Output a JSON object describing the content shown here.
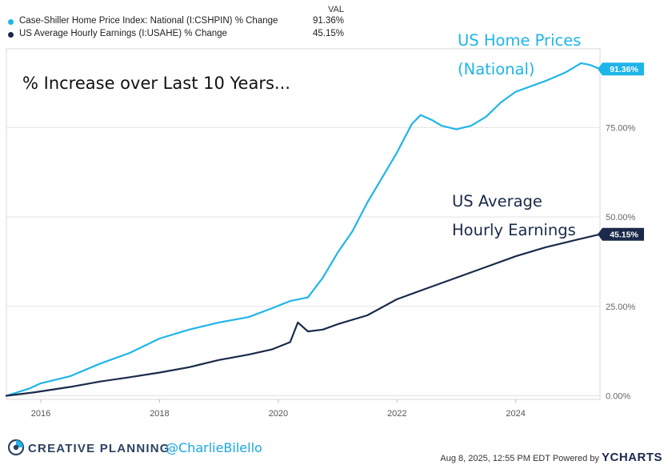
{
  "legend": {
    "header": "VAL",
    "items": [
      {
        "name": "Case-Shiller Home Price Index: National (I:CSHPIN) % Change",
        "value": "91.36%",
        "color": "#1fb5e8"
      },
      {
        "name": "US Average Hourly Earnings (I:USAHE) % Change",
        "value": "45.15%",
        "color": "#1b2a4a"
      }
    ]
  },
  "annotations": {
    "main": "% Increase over Last 10 Years...",
    "home_line1": "US Home Prices",
    "home_line2": "(National)",
    "earn_line1": "US Average",
    "earn_line2": "Hourly Earnings"
  },
  "chart_data": {
    "type": "line",
    "x_ticks": [
      "2016",
      "2018",
      "2020",
      "2022",
      "2024"
    ],
    "y_ticks": [
      "0.00%",
      "25.00%",
      "50.00%",
      "75.00%"
    ],
    "xlim": [
      2015.42,
      2025.42
    ],
    "ylim": [
      -1,
      97
    ],
    "grid": true,
    "series": [
      {
        "name": "Case-Shiller Home Price Index: National (I:CSHPIN) % Change",
        "color": "#1fb5e8",
        "end_label": "91.36%",
        "points": [
          [
            2015.42,
            0
          ],
          [
            2015.8,
            2
          ],
          [
            2016.0,
            3.5
          ],
          [
            2016.5,
            5.5
          ],
          [
            2017.0,
            9
          ],
          [
            2017.5,
            12
          ],
          [
            2018.0,
            16
          ],
          [
            2018.5,
            18.5
          ],
          [
            2019.0,
            20.5
          ],
          [
            2019.5,
            22
          ],
          [
            2019.9,
            24.5
          ],
          [
            2020.2,
            26.5
          ],
          [
            2020.5,
            27.5
          ],
          [
            2020.75,
            33
          ],
          [
            2021.0,
            40
          ],
          [
            2021.25,
            46
          ],
          [
            2021.5,
            54
          ],
          [
            2021.75,
            61
          ],
          [
            2022.0,
            68
          ],
          [
            2022.25,
            76
          ],
          [
            2022.4,
            78.5
          ],
          [
            2022.6,
            77
          ],
          [
            2022.75,
            75.5
          ],
          [
            2023.0,
            74.5
          ],
          [
            2023.25,
            75.5
          ],
          [
            2023.5,
            78
          ],
          [
            2023.75,
            82
          ],
          [
            2024.0,
            85
          ],
          [
            2024.5,
            88
          ],
          [
            2024.85,
            90.5
          ],
          [
            2025.1,
            93
          ],
          [
            2025.25,
            92.5
          ],
          [
            2025.42,
            91.36
          ]
        ]
      },
      {
        "name": "US Average Hourly Earnings (I:USAHE) % Change",
        "color": "#1b2a4a",
        "end_label": "45.15%",
        "points": [
          [
            2015.42,
            0
          ],
          [
            2015.9,
            1
          ],
          [
            2016.5,
            2.5
          ],
          [
            2017.0,
            4
          ],
          [
            2017.5,
            5.2
          ],
          [
            2018.0,
            6.5
          ],
          [
            2018.5,
            8
          ],
          [
            2019.0,
            10
          ],
          [
            2019.5,
            11.5
          ],
          [
            2019.9,
            13
          ],
          [
            2020.2,
            15
          ],
          [
            2020.33,
            20.5
          ],
          [
            2020.5,
            18
          ],
          [
            2020.75,
            18.5
          ],
          [
            2021.0,
            20
          ],
          [
            2021.5,
            22.5
          ],
          [
            2022.0,
            27
          ],
          [
            2022.5,
            30
          ],
          [
            2023.0,
            33
          ],
          [
            2023.5,
            36
          ],
          [
            2024.0,
            39
          ],
          [
            2024.5,
            41.5
          ],
          [
            2025.0,
            43.5
          ],
          [
            2025.42,
            45.15
          ]
        ]
      }
    ]
  },
  "footer": {
    "brand": "CREATIVE PLANNING",
    "handle": "@CharlieBilello",
    "timestamp": "Aug 8, 2025, 12:55 PM EDT Powered by",
    "ycharts": "YCHARTS"
  }
}
